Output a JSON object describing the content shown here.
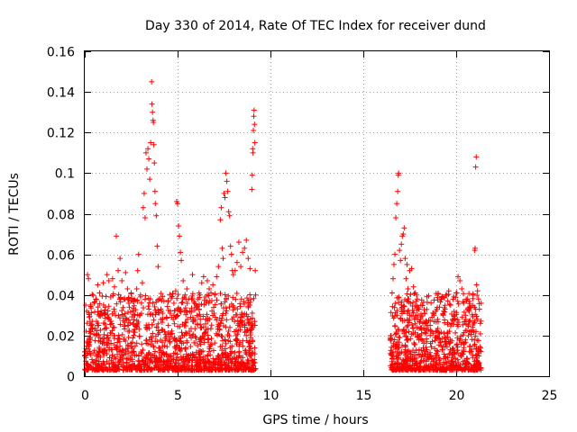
{
  "chart_data": {
    "type": "scatter",
    "title": "Day 330 of 2014, Rate Of TEC Index for receiver dund",
    "xlabel": "GPS time / hours",
    "ylabel": "ROTI / TECUs",
    "xlim": [
      0,
      25
    ],
    "ylim": [
      0,
      0.16
    ],
    "xticks": [
      0,
      5,
      10,
      15,
      20,
      25
    ],
    "yticks": [
      0,
      0.02,
      0.04,
      0.06,
      0.08,
      0.1,
      0.12,
      0.14,
      0.16
    ],
    "xtick_labels": [
      "0",
      "5",
      "10",
      "15",
      "20",
      "25"
    ],
    "ytick_labels": [
      "0",
      "0.02",
      "0.04",
      "0.06",
      "0.08",
      "0.1",
      "0.12",
      "0.14",
      "0.16"
    ],
    "grid": true,
    "marker": "+",
    "color": "#ff0000",
    "series": [
      {
        "points": [
          [
            0.0,
            0.012
          ],
          [
            0.05,
            0.035
          ],
          [
            0.1,
            0.032
          ],
          [
            0.15,
            0.05
          ],
          [
            0.2,
            0.048
          ],
          [
            0.25,
            0.022
          ],
          [
            0.3,
            0.018
          ],
          [
            0.4,
            0.027
          ],
          [
            0.5,
            0.036
          ],
          [
            0.6,
            0.038
          ],
          [
            0.7,
            0.045
          ],
          [
            0.8,
            0.041
          ],
          [
            0.9,
            0.031
          ],
          [
            1.0,
            0.046
          ],
          [
            1.1,
            0.034
          ],
          [
            1.2,
            0.05
          ],
          [
            1.3,
            0.047
          ],
          [
            1.4,
            0.039
          ],
          [
            1.5,
            0.048
          ],
          [
            1.6,
            0.044
          ],
          [
            1.7,
            0.069
          ],
          [
            1.8,
            0.052
          ],
          [
            1.9,
            0.058
          ],
          [
            2.0,
            0.047
          ],
          [
            2.1,
            0.038
          ],
          [
            2.2,
            0.051
          ],
          [
            2.3,
            0.043
          ],
          [
            2.4,
            0.034
          ],
          [
            2.5,
            0.041
          ],
          [
            2.6,
            0.037
          ],
          [
            2.7,
            0.03
          ],
          [
            2.8,
            0.043
          ],
          [
            2.85,
            0.052
          ],
          [
            2.9,
            0.06
          ],
          [
            3.0,
            0.04
          ],
          [
            3.05,
            0.036
          ],
          [
            3.1,
            0.046
          ],
          [
            3.15,
            0.083
          ],
          [
            3.2,
            0.09
          ],
          [
            3.25,
            0.078
          ],
          [
            3.3,
            0.11
          ],
          [
            3.35,
            0.102
          ],
          [
            3.4,
            0.112
          ],
          [
            3.45,
            0.107
          ],
          [
            3.5,
            0.097
          ],
          [
            3.55,
            0.115
          ],
          [
            3.6,
            0.145
          ],
          [
            3.62,
            0.134
          ],
          [
            3.65,
            0.13
          ],
          [
            3.68,
            0.126
          ],
          [
            3.7,
            0.125
          ],
          [
            3.72,
            0.114
          ],
          [
            3.75,
            0.105
          ],
          [
            3.78,
            0.091
          ],
          [
            3.8,
            0.085
          ],
          [
            3.85,
            0.079
          ],
          [
            3.9,
            0.064
          ],
          [
            3.95,
            0.054
          ],
          [
            4.0,
            0.038
          ],
          [
            4.1,
            0.033
          ],
          [
            4.2,
            0.028
          ],
          [
            4.3,
            0.022
          ],
          [
            4.4,
            0.029
          ],
          [
            4.5,
            0.025
          ],
          [
            4.6,
            0.031
          ],
          [
            4.7,
            0.021
          ],
          [
            4.8,
            0.03
          ],
          [
            4.9,
            0.042
          ],
          [
            4.95,
            0.086
          ],
          [
            5.0,
            0.085
          ],
          [
            5.05,
            0.074
          ],
          [
            5.1,
            0.069
          ],
          [
            5.15,
            0.061
          ],
          [
            5.2,
            0.057
          ],
          [
            5.3,
            0.047
          ],
          [
            5.4,
            0.04
          ],
          [
            5.5,
            0.043
          ],
          [
            5.6,
            0.038
          ],
          [
            5.7,
            0.029
          ],
          [
            5.8,
            0.05
          ],
          [
            5.9,
            0.036
          ],
          [
            6.0,
            0.034
          ],
          [
            6.1,
            0.038
          ],
          [
            6.2,
            0.04
          ],
          [
            6.3,
            0.046
          ],
          [
            6.4,
            0.049
          ],
          [
            6.5,
            0.039
          ],
          [
            6.6,
            0.047
          ],
          [
            6.7,
            0.043
          ],
          [
            6.8,
            0.041
          ],
          [
            6.9,
            0.045
          ],
          [
            7.0,
            0.04
          ],
          [
            7.1,
            0.049
          ],
          [
            7.2,
            0.054
          ],
          [
            7.3,
            0.077
          ],
          [
            7.35,
            0.083
          ],
          [
            7.4,
            0.063
          ],
          [
            7.45,
            0.058
          ],
          [
            7.5,
            0.09
          ],
          [
            7.55,
            0.088
          ],
          [
            7.6,
            0.1
          ],
          [
            7.65,
            0.096
          ],
          [
            7.7,
            0.091
          ],
          [
            7.75,
            0.081
          ],
          [
            7.8,
            0.079
          ],
          [
            7.85,
            0.064
          ],
          [
            7.9,
            0.06
          ],
          [
            7.95,
            0.052
          ],
          [
            8.0,
            0.05
          ],
          [
            8.1,
            0.052
          ],
          [
            8.2,
            0.056
          ],
          [
            8.3,
            0.066
          ],
          [
            8.4,
            0.054
          ],
          [
            8.5,
            0.061
          ],
          [
            8.6,
            0.063
          ],
          [
            8.7,
            0.067
          ],
          [
            8.8,
            0.058
          ],
          [
            8.9,
            0.053
          ],
          [
            9.0,
            0.092
          ],
          [
            9.02,
            0.099
          ],
          [
            9.04,
            0.112
          ],
          [
            9.06,
            0.11
          ],
          [
            9.08,
            0.121
          ],
          [
            9.1,
            0.128
          ],
          [
            9.12,
            0.131
          ],
          [
            9.14,
            0.124
          ],
          [
            9.16,
            0.115
          ],
          [
            9.18,
            0.052
          ],
          [
            9.2,
            0.04
          ],
          [
            16.5,
            0.02
          ],
          [
            16.55,
            0.041
          ],
          [
            16.6,
            0.048
          ],
          [
            16.65,
            0.055
          ],
          [
            16.7,
            0.06
          ],
          [
            16.75,
            0.078
          ],
          [
            16.8,
            0.085
          ],
          [
            16.85,
            0.091
          ],
          [
            16.88,
            0.099
          ],
          [
            16.9,
            0.1
          ],
          [
            16.95,
            0.062
          ],
          [
            17.0,
            0.057
          ],
          [
            17.05,
            0.065
          ],
          [
            17.1,
            0.069
          ],
          [
            17.15,
            0.07
          ],
          [
            17.2,
            0.073
          ],
          [
            17.25,
            0.058
          ],
          [
            17.3,
            0.048
          ],
          [
            17.35,
            0.055
          ],
          [
            17.4,
            0.043
          ],
          [
            17.5,
            0.052
          ],
          [
            17.6,
            0.053
          ],
          [
            17.7,
            0.044
          ],
          [
            17.8,
            0.041
          ],
          [
            17.9,
            0.038
          ],
          [
            18.0,
            0.033
          ],
          [
            18.1,
            0.035
          ],
          [
            18.2,
            0.026
          ],
          [
            18.3,
            0.031
          ],
          [
            18.4,
            0.027
          ],
          [
            18.5,
            0.023
          ],
          [
            18.6,
            0.025
          ],
          [
            18.7,
            0.029
          ],
          [
            18.8,
            0.03
          ],
          [
            18.9,
            0.032
          ],
          [
            19.0,
            0.028
          ],
          [
            19.1,
            0.034
          ],
          [
            19.2,
            0.038
          ],
          [
            19.3,
            0.03
          ],
          [
            19.4,
            0.033
          ],
          [
            19.5,
            0.04
          ],
          [
            19.6,
            0.042
          ],
          [
            19.7,
            0.035
          ],
          [
            19.8,
            0.028
          ],
          [
            19.9,
            0.03
          ],
          [
            20.0,
            0.041
          ],
          [
            20.1,
            0.049
          ],
          [
            20.2,
            0.047
          ],
          [
            20.3,
            0.043
          ],
          [
            20.4,
            0.036
          ],
          [
            20.5,
            0.03
          ],
          [
            20.6,
            0.038
          ],
          [
            20.7,
            0.032
          ],
          [
            20.8,
            0.034
          ],
          [
            20.9,
            0.04
          ],
          [
            21.0,
            0.062
          ],
          [
            21.02,
            0.063
          ],
          [
            21.05,
            0.103
          ],
          [
            21.08,
            0.108
          ],
          [
            21.1,
            0.045
          ],
          [
            21.15,
            0.042
          ],
          [
            21.2,
            0.038
          ],
          [
            21.25,
            0.033
          ],
          [
            21.3,
            0.026
          ]
        ]
      }
    ]
  }
}
